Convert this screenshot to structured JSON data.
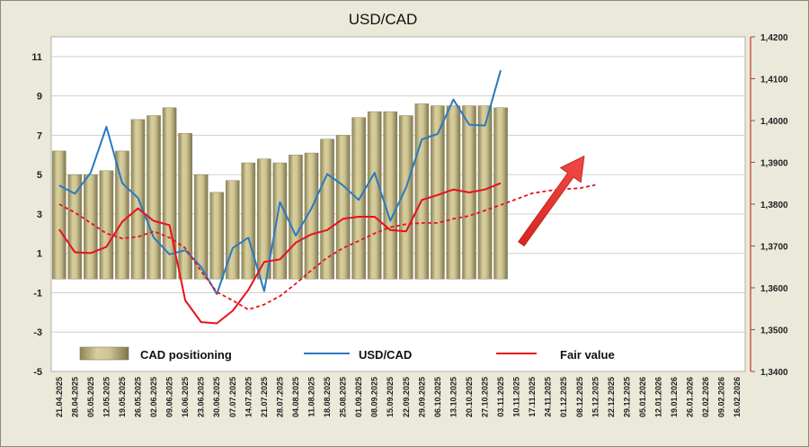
{
  "chart_data": {
    "type": "bar+line",
    "title": "USD/CAD",
    "x_labels": [
      "21.04.2025",
      "28.04.2025",
      "05.05.2025",
      "12.05.2025",
      "19.05.2025",
      "26.05.2025",
      "02.06.2025",
      "09.06.2025",
      "16.06.2025",
      "23.06.2025",
      "30.06.2025",
      "07.07.2025",
      "14.07.2025",
      "21.07.2025",
      "28.07.2025",
      "04.08.2025",
      "11.08.2025",
      "18.08.2025",
      "25.08.2025",
      "01.09.2025",
      "08.09.2025",
      "15.09.2025",
      "22.09.2025",
      "29.09.2025",
      "06.10.2025",
      "13.10.2025",
      "20.10.2025",
      "27.10.2025",
      "03.11.2025",
      "10.11.2025",
      "17.11.2025",
      "24.11.2025",
      "01.12.2025",
      "08.12.2025",
      "15.12.2025",
      "22.12.2025",
      "29.12.2025",
      "05.01.2026",
      "12.01.2026",
      "19.01.2026",
      "26.01.2026",
      "02.02.2026",
      "09.02.2026",
      "16.02.2026"
    ],
    "left_axis": {
      "range": [
        -5,
        12
      ],
      "ticks": [
        11,
        9,
        7,
        5,
        3,
        1,
        -1,
        -3,
        -5
      ]
    },
    "right_axis": {
      "range": [
        1.34,
        1.42
      ],
      "ticks": [
        "1,4200",
        "1,4100",
        "1,4000",
        "1,3900",
        "1,3800",
        "1,3700",
        "1,3600",
        "1,3500",
        "1,3400"
      ]
    },
    "series": [
      {
        "name": "CAD positioning",
        "type": "bar",
        "axis": "left",
        "color": "#c2b888",
        "values": [
          6.2,
          5.0,
          5.0,
          5.2,
          6.2,
          7.8,
          8.0,
          8.4,
          7.1,
          5.0,
          4.1,
          4.7,
          5.6,
          5.8,
          5.6,
          6.0,
          6.1,
          6.8,
          7.0,
          7.9,
          8.2,
          8.2,
          8.0,
          8.6,
          8.5,
          8.5,
          8.5,
          8.5,
          8.4
        ]
      },
      {
        "name": "USD/CAD",
        "type": "line",
        "axis": "right",
        "color": "#2a7abf",
        "values": [
          1.3845,
          1.3825,
          1.3875,
          1.3985,
          1.385,
          1.3815,
          1.372,
          1.368,
          1.369,
          1.365,
          1.3585,
          1.3695,
          1.372,
          1.3592,
          1.3805,
          1.3725,
          1.379,
          1.3872,
          1.3845,
          1.381,
          1.3875,
          1.376,
          1.384,
          1.3955,
          1.3968,
          1.405,
          1.399,
          1.3988,
          1.412
        ]
      },
      {
        "name": "Fair value",
        "type": "line",
        "axis": "right",
        "color": "#e8111b",
        "values": [
          1.374,
          1.3685,
          1.3683,
          1.3698,
          1.3758,
          1.379,
          1.376,
          1.375,
          1.357,
          1.3518,
          1.3515,
          1.3545,
          1.3595,
          1.3662,
          1.3668,
          1.3708,
          1.3728,
          1.3738,
          1.3765,
          1.377,
          1.377,
          1.3738,
          1.3735,
          1.381,
          1.3822,
          1.3835,
          1.3828,
          1.3835,
          1.385
        ]
      },
      {
        "name": "Fair value",
        "type": "line",
        "style": "dashed",
        "axis": "right",
        "color": "#e8111b",
        "values": [
          1.38,
          1.378,
          1.3755,
          1.373,
          1.3718,
          1.3722,
          1.3735,
          1.372,
          1.3695,
          1.364,
          1.359,
          1.357,
          1.3548,
          1.356,
          1.358,
          1.361,
          1.3642,
          1.3672,
          1.3695,
          1.3712,
          1.373,
          1.3745,
          1.3752,
          1.3755,
          1.3755,
          1.3765,
          1.3772,
          1.3785,
          1.3798,
          1.3812,
          1.3826,
          1.3832,
          1.3836,
          1.3838,
          1.3846
        ]
      }
    ],
    "legend": [
      "CAD positioning",
      "USD/CAD",
      "Fair value"
    ],
    "annotation": {
      "type": "arrow",
      "direction": "up-right",
      "color": "#e83a38",
      "from_index": 29.3,
      "from_value": 1.3705,
      "to_index": 33.3,
      "to_value": 1.3915
    }
  }
}
